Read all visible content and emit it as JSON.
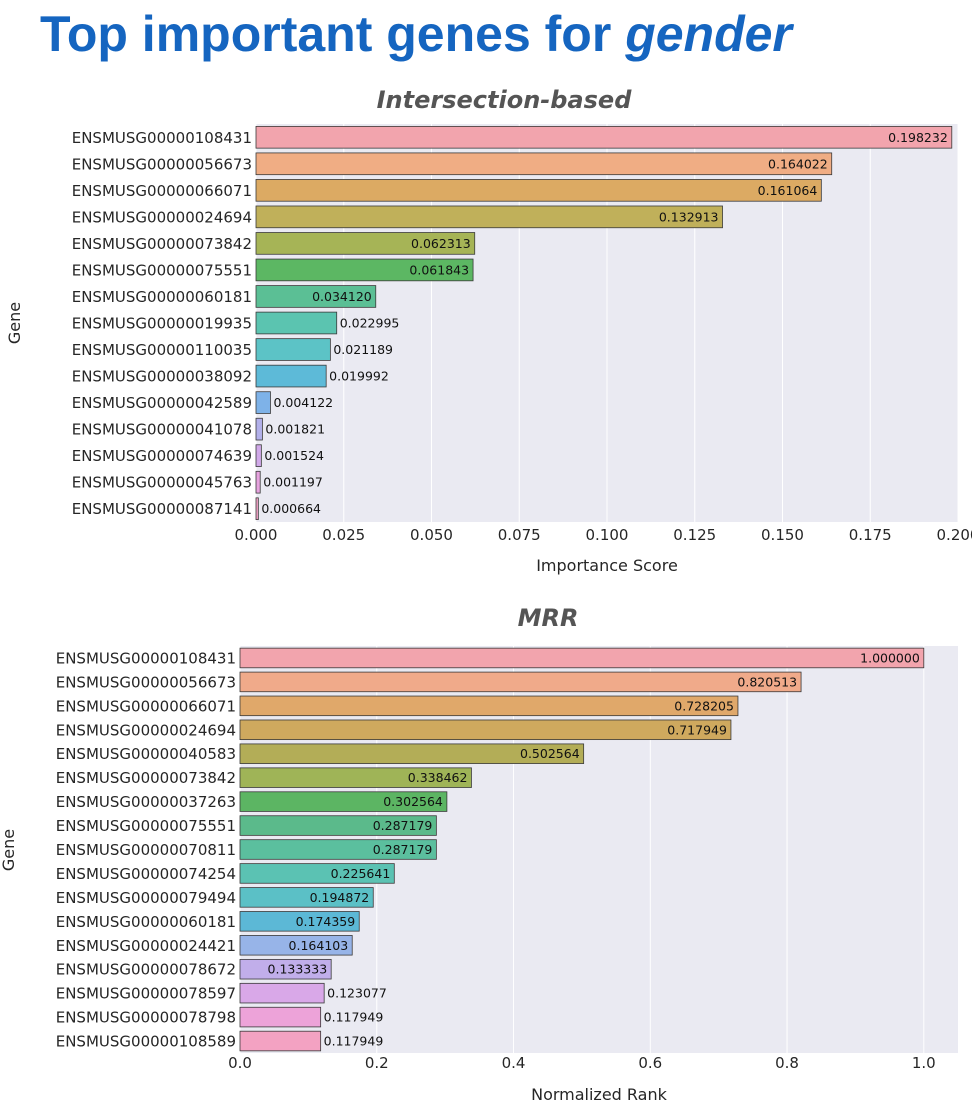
{
  "slide": {
    "title_main": "Top important genes for ",
    "title_emph": "gender"
  },
  "chart_data": [
    {
      "type": "bar",
      "orientation": "horizontal",
      "title": "Intersection-based",
      "xlabel": "Importance Score",
      "ylabel": "Gene",
      "xlim": [
        0,
        0.2
      ],
      "xticks": [
        "0.000",
        "0.025",
        "0.050",
        "0.075",
        "0.100",
        "0.125",
        "0.150",
        "0.175",
        "0.200"
      ],
      "grid": true,
      "categories": [
        "ENSMUSG00000108431",
        "ENSMUSG00000056673",
        "ENSMUSG00000066071",
        "ENSMUSG00000024694",
        "ENSMUSG00000073842",
        "ENSMUSG00000075551",
        "ENSMUSG00000060181",
        "ENSMUSG00000019935",
        "ENSMUSG00000110035",
        "ENSMUSG00000038092",
        "ENSMUSG00000042589",
        "ENSMUSG00000041078",
        "ENSMUSG00000074639",
        "ENSMUSG00000045763",
        "ENSMUSG00000087141"
      ],
      "values": [
        0.198232,
        0.164022,
        0.161064,
        0.132913,
        0.062313,
        0.061843,
        0.03412,
        0.022995,
        0.021189,
        0.019992,
        0.004122,
        0.001821,
        0.001524,
        0.001197,
        0.000664
      ],
      "value_labels": [
        "0.198232",
        "0.164022",
        "0.161064",
        "0.132913",
        "0.062313",
        "0.061843",
        "0.034120",
        "0.022995",
        "0.021189",
        "0.019992",
        "0.004122",
        "0.001821",
        "0.001524",
        "0.001197",
        "0.000664"
      ],
      "colors": [
        "#f2a4ad",
        "#f0ad84",
        "#dcaa63",
        "#c0b05a",
        "#a6b456",
        "#5cb763",
        "#5bbf95",
        "#5bc4b0",
        "#5cc3c6",
        "#5dbad8",
        "#7eb2e8",
        "#b2b0ea",
        "#d1a9e9",
        "#e7a3df",
        "#f2a2c6"
      ]
    },
    {
      "type": "bar",
      "orientation": "horizontal",
      "title": "MRR",
      "xlabel": "Normalized Rank",
      "ylabel": "Gene",
      "xlim": [
        0,
        1.05
      ],
      "xticks": [
        "0.0",
        "0.2",
        "0.4",
        "0.6",
        "0.8",
        "1.0"
      ],
      "grid": true,
      "categories": [
        "ENSMUSG00000108431",
        "ENSMUSG00000056673",
        "ENSMUSG00000066071",
        "ENSMUSG00000024694",
        "ENSMUSG00000040583",
        "ENSMUSG00000073842",
        "ENSMUSG00000037263",
        "ENSMUSG00000075551",
        "ENSMUSG00000070811",
        "ENSMUSG00000074254",
        "ENSMUSG00000079494",
        "ENSMUSG00000060181",
        "ENSMUSG00000024421",
        "ENSMUSG00000078672",
        "ENSMUSG00000078597",
        "ENSMUSG00000078798",
        "ENSMUSG00000108589"
      ],
      "values": [
        1.0,
        0.820513,
        0.728205,
        0.717949,
        0.502564,
        0.338462,
        0.302564,
        0.287179,
        0.287179,
        0.225641,
        0.194872,
        0.174359,
        0.164103,
        0.133333,
        0.123077,
        0.117949,
        0.117949
      ],
      "value_labels": [
        "1.000000",
        "0.820513",
        "0.728205",
        "0.717949",
        "0.502564",
        "0.338462",
        "0.302564",
        "0.287179",
        "0.287179",
        "0.225641",
        "0.194872",
        "0.174359",
        "0.164103",
        "0.133333",
        "0.123077",
        "0.117949",
        "0.117949"
      ],
      "colors": [
        "#f2a4ad",
        "#f0aa8a",
        "#e0a86a",
        "#cfa95e",
        "#b3ad57",
        "#9fb457",
        "#5cb563",
        "#5bba8b",
        "#5bbf9e",
        "#5bc2b3",
        "#5bc0c6",
        "#5cb8d6",
        "#97b4e8",
        "#c1aeea",
        "#d9a8e8",
        "#eda3d9",
        "#f3a2c2"
      ]
    }
  ]
}
